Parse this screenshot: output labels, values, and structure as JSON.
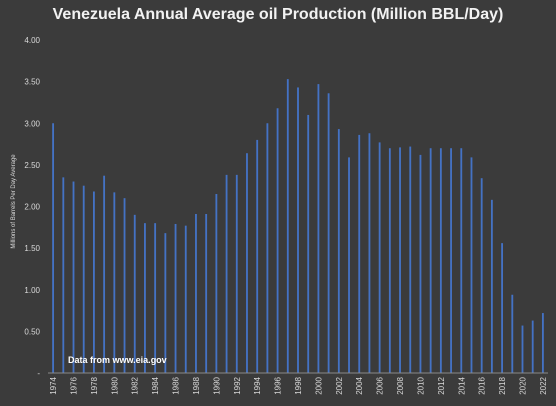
{
  "chart_data": {
    "type": "bar",
    "title": "Venezuela Annual Average oil Production (Million BBL/Day)",
    "ylabel": "Millions of Barrels Per Day Average",
    "xlabel": "",
    "annotation": "Data from www.eia.gov",
    "ylim": [
      0,
      4.0
    ],
    "yticks": [
      0,
      0.5,
      1.0,
      1.5,
      2.0,
      2.5,
      3.0,
      3.5,
      4.0
    ],
    "ytick_labels": [
      "-",
      "0.50",
      "1.00",
      "1.50",
      "2.00",
      "2.50",
      "3.00",
      "3.50",
      "4.00"
    ],
    "categories": [
      1974,
      1975,
      1976,
      1977,
      1978,
      1979,
      1980,
      1981,
      1982,
      1983,
      1984,
      1985,
      1986,
      1987,
      1988,
      1989,
      1990,
      1991,
      1992,
      1993,
      1994,
      1995,
      1996,
      1997,
      1998,
      1999,
      2000,
      2001,
      2002,
      2003,
      2004,
      2005,
      2006,
      2007,
      2008,
      2009,
      2010,
      2011,
      2012,
      2013,
      2014,
      2015,
      2016,
      2017,
      2018,
      2019,
      2020,
      2021,
      2022
    ],
    "xtick_labels": [
      "1974",
      "1976",
      "1978",
      "1980",
      "1982",
      "1984",
      "1986",
      "1988",
      "1990",
      "1992",
      "1994",
      "1996",
      "1998",
      "2000",
      "2002",
      "2004",
      "2006",
      "2008",
      "2010",
      "2012",
      "2014",
      "2016",
      "2018",
      "2020",
      "2022"
    ],
    "values": [
      3.0,
      2.35,
      2.3,
      2.25,
      2.18,
      2.37,
      2.17,
      2.1,
      1.9,
      1.8,
      1.8,
      1.68,
      1.79,
      1.77,
      1.91,
      1.91,
      2.15,
      2.38,
      2.38,
      2.64,
      2.8,
      3.0,
      3.18,
      3.53,
      3.43,
      3.1,
      3.47,
      3.36,
      2.93,
      2.59,
      2.86,
      2.88,
      2.77,
      2.7,
      2.71,
      2.72,
      2.62,
      2.7,
      2.7,
      2.7,
      2.7,
      2.59,
      2.34,
      2.08,
      1.56,
      0.94,
      0.57,
      0.63,
      0.72
    ],
    "grid": false,
    "bar_color": "#4472c4"
  }
}
